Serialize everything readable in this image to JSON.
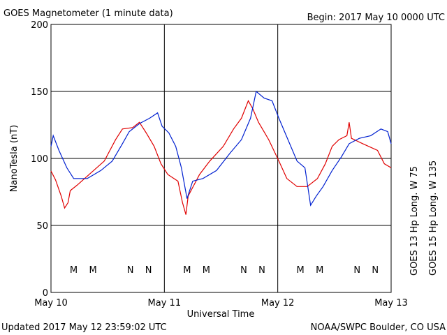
{
  "chart_data": {
    "type": "line",
    "title": "GOES Magnetometer (1 minute data)",
    "subtitle": "Begin:  2017 May 10 0000 UTC",
    "y_label": "NanoTesla (nT)",
    "x_label": "Universal Time",
    "footer_left": "Updated 2017 May 12 23:59:02 UTC",
    "footer_right": "NOAA/SWPC Boulder, CO USA",
    "xlim": [
      10,
      13
    ],
    "xticks": [
      {
        "value": 10,
        "label": "May 10"
      },
      {
        "value": 11,
        "label": "May 11"
      },
      {
        "value": 12,
        "label": "May 12"
      },
      {
        "value": 13,
        "label": "May 13"
      }
    ],
    "ylim": [
      0,
      200
    ],
    "yticks": [
      0,
      50,
      100,
      150,
      200
    ],
    "grid": true,
    "series": [
      {
        "name": "GOES 13 Hp  Long. W 75",
        "color": "#e00000",
        "x": [
          10.0,
          10.04,
          10.09,
          10.12,
          10.15,
          10.17,
          10.23,
          10.35,
          10.47,
          10.57,
          10.63,
          10.72,
          10.78,
          10.84,
          10.91,
          10.97,
          11.03,
          11.12,
          11.16,
          11.19,
          11.21,
          11.31,
          11.4,
          11.52,
          11.61,
          11.68,
          11.74,
          11.78,
          11.83,
          11.92,
          12.01,
          12.08,
          12.17,
          12.26,
          12.35,
          12.42,
          12.48,
          12.54,
          12.61,
          12.63,
          12.65,
          12.75,
          12.88,
          12.94,
          13.0
        ],
        "values": [
          90.6,
          84,
          72,
          63,
          67,
          76,
          80,
          89,
          98,
          114,
          122,
          123,
          127,
          119,
          109,
          96,
          88,
          83,
          67,
          58,
          72,
          88,
          98,
          109,
          122,
          130,
          143,
          137,
          127,
          114,
          98,
          85,
          79,
          79,
          85,
          96,
          109,
          114,
          117,
          127,
          115,
          111,
          106,
          96,
          93
        ]
      },
      {
        "name": "GOES 15 Hp  Long. W 135",
        "color": "#0020d0",
        "x": [
          10.0,
          10.02,
          10.07,
          10.14,
          10.2,
          10.32,
          10.44,
          10.54,
          10.63,
          10.69,
          10.78,
          10.87,
          10.94,
          10.98,
          11.04,
          11.1,
          11.15,
          11.2,
          11.25,
          11.34,
          11.46,
          11.58,
          11.68,
          11.76,
          11.81,
          11.88,
          11.95,
          12.01,
          12.09,
          12.17,
          12.24,
          12.29,
          12.34,
          12.4,
          12.48,
          12.56,
          12.63,
          12.72,
          12.82,
          12.91,
          12.97,
          13.0
        ],
        "values": [
          109,
          117,
          106,
          93,
          85,
          85,
          91,
          98,
          111,
          120,
          126,
          130,
          134,
          124,
          119,
          109,
          93,
          70,
          83,
          85,
          91,
          104,
          114,
          130,
          150,
          145,
          143,
          130,
          114,
          98,
          93,
          65,
          72,
          79,
          91,
          101,
          111,
          115,
          117,
          122,
          120,
          111
        ]
      }
    ],
    "markers": [
      {
        "label": "M",
        "x": 10.2,
        "series": 0
      },
      {
        "label": "M",
        "x": 10.37,
        "series": 1
      },
      {
        "label": "N",
        "x": 10.7,
        "series": 0
      },
      {
        "label": "N",
        "x": 10.86,
        "series": 1
      },
      {
        "label": "M",
        "x": 11.2,
        "series": 0
      },
      {
        "label": "M",
        "x": 11.37,
        "series": 1
      },
      {
        "label": "N",
        "x": 11.7,
        "series": 0
      },
      {
        "label": "N",
        "x": 11.86,
        "series": 1
      },
      {
        "label": "M",
        "x": 12.2,
        "series": 0
      },
      {
        "label": "M",
        "x": 12.37,
        "series": 1
      },
      {
        "label": "N",
        "x": 12.7,
        "series": 0
      },
      {
        "label": "N",
        "x": 12.86,
        "series": 1
      }
    ]
  }
}
